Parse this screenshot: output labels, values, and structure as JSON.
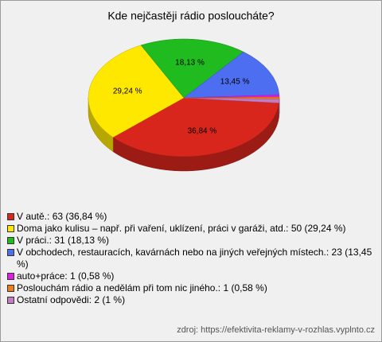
{
  "chart_data": {
    "type": "pie",
    "title": "Kde nejčastěji rádio posloucháte?",
    "categories": [
      "V autě.: 63 (36,84 %)",
      "Doma jako kulisu – např. při vaření, uklízení, práci v garáži, atd.: 50 (29,24 %)",
      "V práci.: 31 (18,13 %)",
      "V obchodech, restauracích, kavárnách nebo na jiných veřejných místech.: 23 (13,45 %)",
      "auto+práce: 1 (0,58 %)",
      "Poslouchám rádio a nedělám při tom nic jiného.: 1 (0,58 %)",
      "Ostatní odpovědi: 2 (1 %)"
    ],
    "values": [
      36.84,
      29.24,
      18.13,
      13.45,
      0.58,
      0.58,
      1
    ],
    "value_labels": [
      "36,84 %",
      "29,24 %",
      "18,13 %",
      "13,45 %",
      null,
      null,
      null
    ],
    "colors": [
      "#d9261c",
      "#ffe800",
      "#1fbb1f",
      "#4d6ef0",
      "#e01ee0",
      "#f07c1a",
      "#c47cc4"
    ],
    "source": "zdroj: https://efektivita-reklamy-v-rozhlas.vyplnto.cz"
  }
}
